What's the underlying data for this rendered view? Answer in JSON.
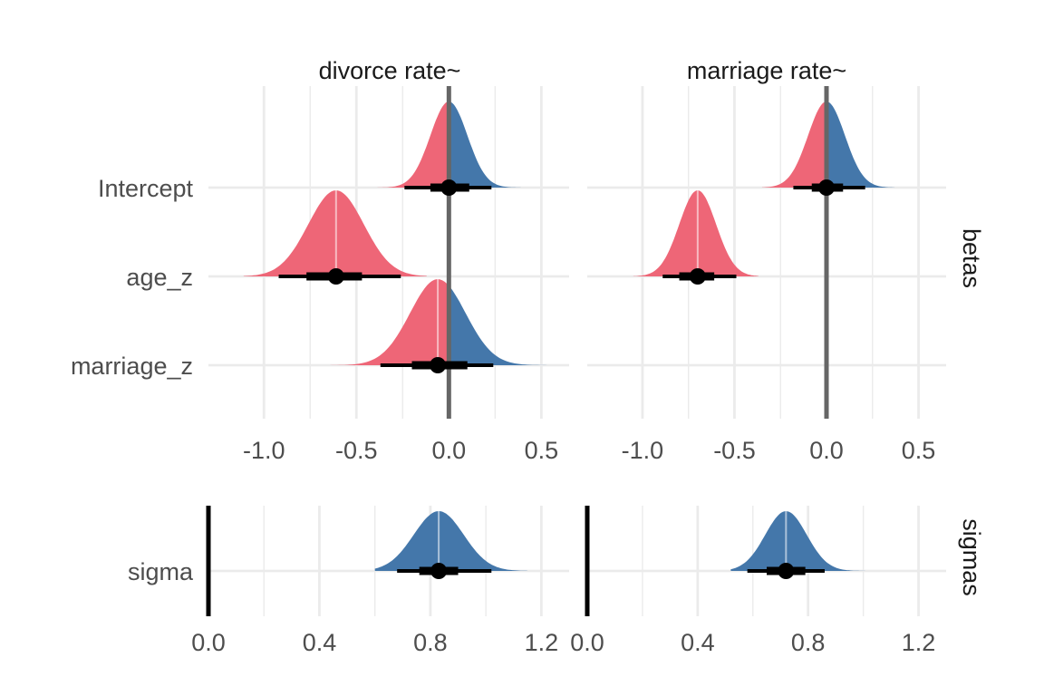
{
  "chart_data": {
    "type": "interval-density",
    "columns": [
      "divorce rate~",
      "marriage rate~"
    ],
    "rows": [
      "betas",
      "sigmas"
    ],
    "colors": {
      "negative": "#EE6677",
      "positive": "#4477AA",
      "median_line": "#ffffff",
      "zero_line_betas": "#666666",
      "zero_line_sigmas": "#000000",
      "point": "#000000",
      "grid": "#ebebeb"
    },
    "panels": {
      "betas": {
        "terms": [
          "Intercept",
          "age_z",
          "marriage_z"
        ],
        "x_ticks": [
          -1.0,
          -0.5,
          0.0,
          0.5
        ],
        "x_tick_labels": [
          "-1.0",
          "-0.5",
          "0.0",
          "0.5"
        ],
        "xlim": [
          -1.3,
          0.65
        ],
        "ref_line": 0,
        "data": {
          "divorce rate~": [
            {
              "term": "Intercept",
              "median": 0.0,
              "sd": 0.1,
              "inner": [
                -0.1,
                0.11
              ],
              "outer": [
                -0.24,
                0.23
              ],
              "dens_min": -0.39,
              "dens_max": 0.41
            },
            {
              "term": "age_z",
              "median": -0.61,
              "sd": 0.15,
              "inner": [
                -0.77,
                -0.47
              ],
              "outer": [
                -0.92,
                -0.26
              ],
              "dens_min": -1.11,
              "dens_max": -0.12
            },
            {
              "term": "marriage_z",
              "median": -0.06,
              "sd": 0.15,
              "inner": [
                -0.2,
                0.1
              ],
              "outer": [
                -0.37,
                0.24
              ],
              "dens_min": -0.66,
              "dens_max": 0.56
            }
          ],
          "marriage rate~": [
            {
              "term": "Intercept",
              "median": 0.0,
              "sd": 0.1,
              "inner": [
                -0.08,
                0.09
              ],
              "outer": [
                -0.18,
                0.21
              ],
              "dens_min": -0.35,
              "dens_max": 0.37
            },
            {
              "term": "age_z",
              "median": -0.7,
              "sd": 0.1,
              "inner": [
                -0.8,
                -0.61
              ],
              "outer": [
                -0.89,
                -0.49
              ],
              "dens_min": -1.05,
              "dens_max": -0.37
            }
          ]
        }
      },
      "sigmas": {
        "terms": [
          "sigma"
        ],
        "x_ticks": [
          0.0,
          0.4,
          0.8,
          1.2
        ],
        "x_tick_labels": [
          "0.0",
          "0.4",
          "0.8",
          "1.2"
        ],
        "xlim": [
          0.0,
          1.3
        ],
        "ref_line": 0,
        "data": {
          "divorce rate~": [
            {
              "term": "sigma",
              "median": 0.83,
              "sd": 0.09,
              "inner": [
                0.76,
                0.9
              ],
              "outer": [
                0.68,
                1.02
              ],
              "dens_min": 0.6,
              "dens_max": 1.15
            }
          ],
          "marriage rate~": [
            {
              "term": "sigma",
              "median": 0.72,
              "sd": 0.075,
              "inner": [
                0.65,
                0.79
              ],
              "outer": [
                0.58,
                0.86
              ],
              "dens_min": 0.52,
              "dens_max": 1.02
            }
          ]
        }
      }
    }
  }
}
